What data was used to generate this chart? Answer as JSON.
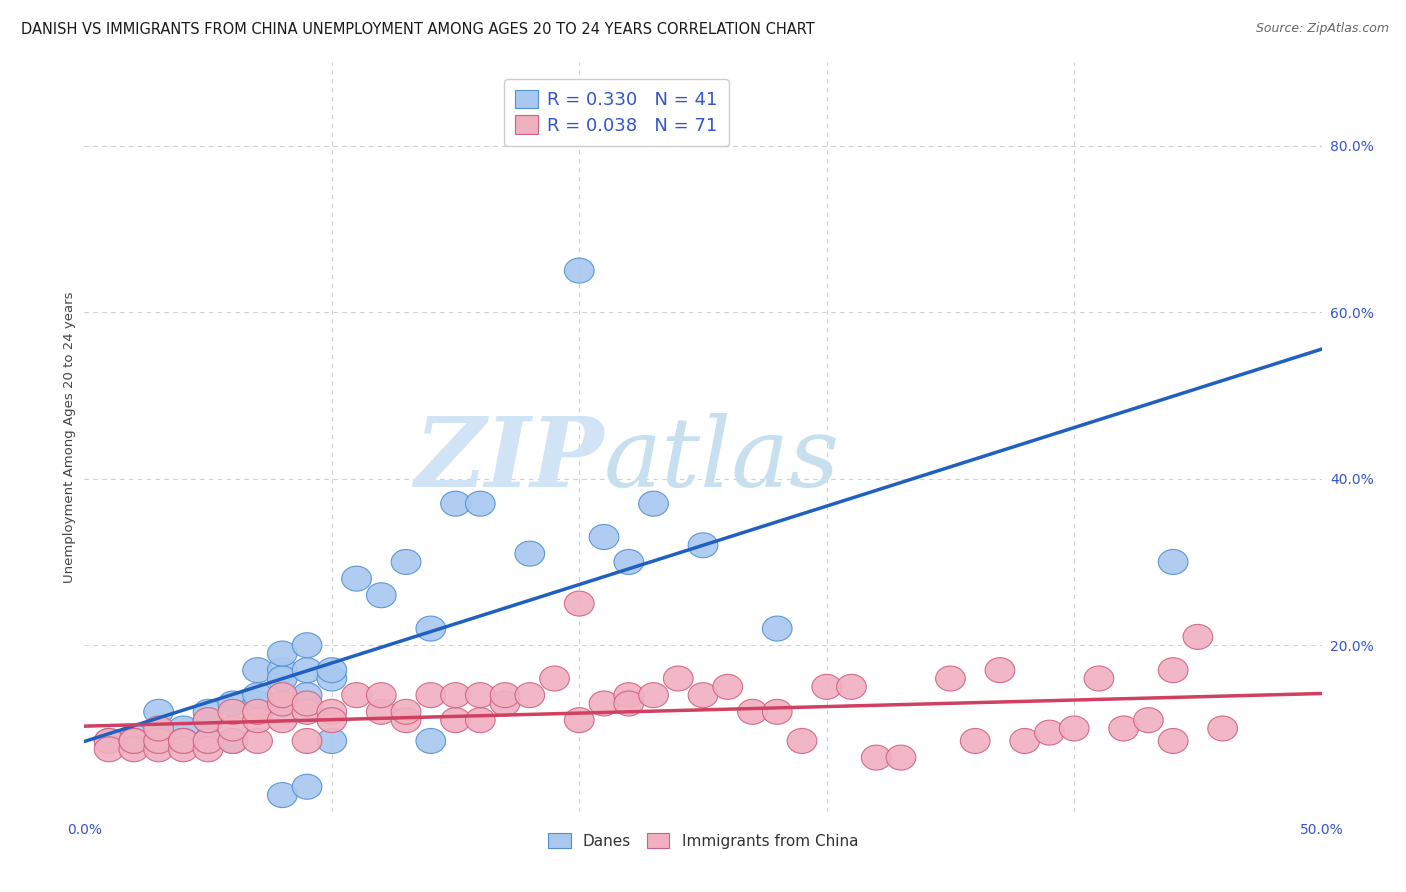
{
  "title": "DANISH VS IMMIGRANTS FROM CHINA UNEMPLOYMENT AMONG AGES 20 TO 24 YEARS CORRELATION CHART",
  "source": "Source: ZipAtlas.com",
  "ylabel": "Unemployment Among Ages 20 to 24 years",
  "xlim": [
    0.0,
    0.5
  ],
  "ylim": [
    -0.02,
    0.9
  ],
  "plot_ylim": [
    0.0,
    0.9
  ],
  "xticks": [
    0.0,
    0.1,
    0.2,
    0.3,
    0.4,
    0.5
  ],
  "yticks_right": [
    0.0,
    0.2,
    0.4,
    0.6,
    0.8
  ],
  "ytick_labels_right": [
    "",
    "20.0%",
    "40.0%",
    "60.0%",
    "80.0%"
  ],
  "xtick_labels": [
    "0.0%",
    "",
    "",
    "",
    "",
    "50.0%"
  ],
  "danes_color": "#a8c8f0",
  "immigrants_color": "#f0b0c0",
  "danes_edge_color": "#5090d0",
  "immigrants_edge_color": "#d06080",
  "danes_line_color": "#2060c0",
  "immigrants_line_color": "#d04060",
  "R_danes": 0.33,
  "N_danes": 41,
  "R_immigrants": 0.038,
  "N_immigrants": 71,
  "danes_x": [
    0.01,
    0.02,
    0.02,
    0.03,
    0.03,
    0.04,
    0.04,
    0.05,
    0.05,
    0.05,
    0.06,
    0.06,
    0.07,
    0.07,
    0.07,
    0.08,
    0.08,
    0.08,
    0.08,
    0.09,
    0.09,
    0.09,
    0.1,
    0.1,
    0.1,
    0.11,
    0.12,
    0.13,
    0.14,
    0.14,
    0.15,
    0.16,
    0.18,
    0.2,
    0.21,
    0.22,
    0.23,
    0.25,
    0.28,
    0.44,
    0.09
  ],
  "danes_y": [
    0.085,
    0.09,
    0.085,
    0.09,
    0.12,
    0.1,
    0.085,
    0.085,
    0.11,
    0.12,
    0.085,
    0.13,
    0.13,
    0.14,
    0.17,
    0.17,
    0.16,
    0.19,
    0.02,
    0.14,
    0.17,
    0.2,
    0.16,
    0.17,
    0.085,
    0.28,
    0.26,
    0.3,
    0.22,
    0.085,
    0.37,
    0.37,
    0.31,
    0.65,
    0.33,
    0.3,
    0.37,
    0.32,
    0.22,
    0.3,
    0.03
  ],
  "immigrants_x": [
    0.01,
    0.01,
    0.02,
    0.02,
    0.02,
    0.03,
    0.03,
    0.03,
    0.04,
    0.04,
    0.04,
    0.05,
    0.05,
    0.05,
    0.06,
    0.06,
    0.06,
    0.07,
    0.07,
    0.07,
    0.08,
    0.08,
    0.08,
    0.09,
    0.09,
    0.09,
    0.1,
    0.1,
    0.11,
    0.12,
    0.12,
    0.13,
    0.13,
    0.14,
    0.15,
    0.15,
    0.16,
    0.16,
    0.17,
    0.17,
    0.18,
    0.19,
    0.2,
    0.2,
    0.21,
    0.22,
    0.22,
    0.23,
    0.24,
    0.25,
    0.26,
    0.27,
    0.28,
    0.29,
    0.3,
    0.31,
    0.32,
    0.33,
    0.35,
    0.36,
    0.37,
    0.38,
    0.39,
    0.4,
    0.41,
    0.42,
    0.43,
    0.44,
    0.44,
    0.45,
    0.46
  ],
  "immigrants_y": [
    0.085,
    0.075,
    0.085,
    0.075,
    0.085,
    0.075,
    0.085,
    0.1,
    0.085,
    0.075,
    0.085,
    0.075,
    0.085,
    0.11,
    0.085,
    0.1,
    0.12,
    0.085,
    0.11,
    0.12,
    0.11,
    0.13,
    0.14,
    0.085,
    0.12,
    0.13,
    0.12,
    0.11,
    0.14,
    0.12,
    0.14,
    0.11,
    0.12,
    0.14,
    0.11,
    0.14,
    0.11,
    0.14,
    0.13,
    0.14,
    0.14,
    0.16,
    0.25,
    0.11,
    0.13,
    0.14,
    0.13,
    0.14,
    0.16,
    0.14,
    0.15,
    0.12,
    0.12,
    0.085,
    0.15,
    0.15,
    0.065,
    0.065,
    0.16,
    0.085,
    0.17,
    0.085,
    0.095,
    0.1,
    0.16,
    0.1,
    0.11,
    0.085,
    0.17,
    0.21,
    0.1
  ],
  "watermark_zip": "ZIP",
  "watermark_atlas": "atlas",
  "background_color": "#ffffff",
  "grid_color": "#d0d0d0",
  "title_fontsize": 10.5,
  "axis_label_fontsize": 9.5,
  "tick_fontsize": 10,
  "legend_fontsize": 13,
  "tick_color": "#3355cc"
}
